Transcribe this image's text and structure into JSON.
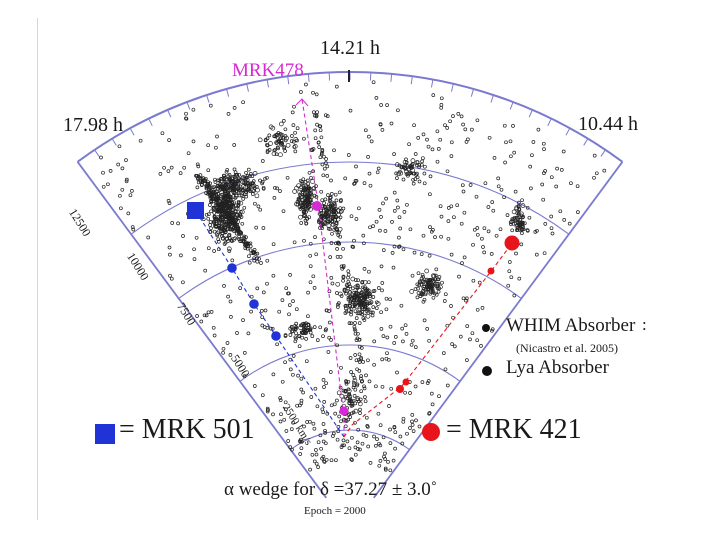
{
  "title_ra_center": "14.21 h",
  "title_ra_left": "17.98 h",
  "title_ra_right": "10.44 h",
  "target_label": "MRK478",
  "radial_ticks": [
    "12500",
    "10000",
    "7500",
    "5000",
    "2500 km/s"
  ],
  "legend": {
    "whim_label": "WHIM Absorber",
    "whim_colon": ":",
    "whim_reference": "(Nicastro et al. 2005)",
    "lya_label": "Lya Absorber"
  },
  "key": {
    "mrk501": "= MRK 501",
    "mrk421": "= MRK 421"
  },
  "caption": {
    "wedge": "α wedge for δ =37.27 ± 3.0˚",
    "epoch": "Epoch = 2000"
  },
  "colors": {
    "mrk501": "#1f33d6",
    "mrk421": "#e8141c",
    "mrk478": "#d62ad6",
    "grid": "#7a7ad0"
  }
}
